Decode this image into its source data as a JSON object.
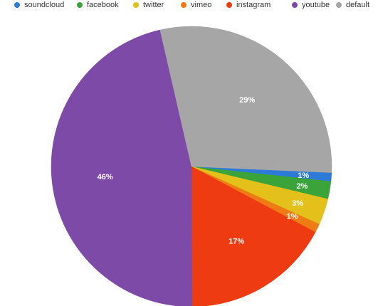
{
  "chart_data": {
    "type": "pie",
    "legend_position": "top-left",
    "series": [
      {
        "name": "soundcloud",
        "value": 1,
        "label": "1%",
        "color": "#2d7bd6"
      },
      {
        "name": "facebook",
        "value": 2,
        "label": "2%",
        "color": "#3aa43a"
      },
      {
        "name": "twitter",
        "value": 3,
        "label": "3%",
        "color": "#e3c01a"
      },
      {
        "name": "vimeo",
        "value": 1,
        "label": "1%",
        "color": "#ef7b14"
      },
      {
        "name": "instagram",
        "value": 17,
        "label": "17%",
        "color": "#ee3b12"
      },
      {
        "name": "youtube",
        "value": 46,
        "label": "46%",
        "color": "#7e4aa8"
      },
      {
        "name": "default",
        "value": 29,
        "label": "29%",
        "color": "#a6a6a6"
      }
    ]
  }
}
